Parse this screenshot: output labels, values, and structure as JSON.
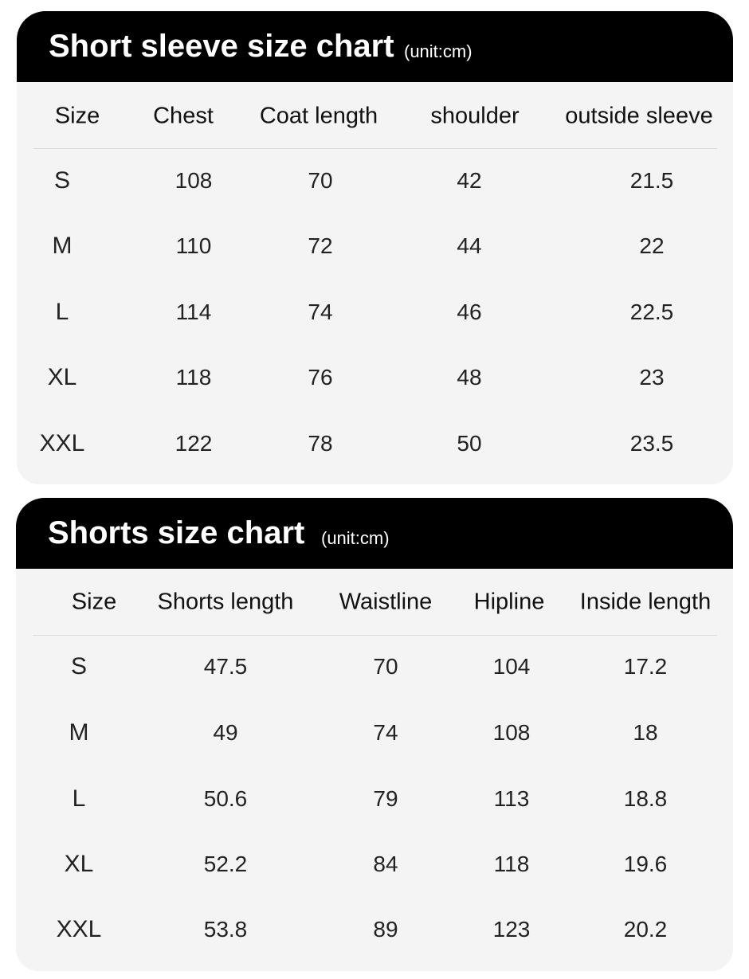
{
  "tables": [
    {
      "title": "Short sleeve size chart",
      "unit": "(unit:cm)",
      "headers": [
        "Size",
        "Chest",
        "Coat length",
        "shoulder",
        "outside sleeve"
      ],
      "rows": [
        [
          "S",
          "108",
          "70",
          "42",
          "21.5"
        ],
        [
          "M",
          "110",
          "72",
          "44",
          "22"
        ],
        [
          "L",
          "114",
          "74",
          "46",
          "22.5"
        ],
        [
          "XL",
          "118",
          "76",
          "48",
          "23"
        ],
        [
          "XXL",
          "122",
          "78",
          "50",
          "23.5"
        ]
      ]
    },
    {
      "title": "Shorts size chart",
      "unit": "(unit:cm)",
      "headers": [
        "Size",
        "Shorts length",
        "Waistline",
        "Hipline",
        "Inside length"
      ],
      "rows": [
        [
          "S",
          "47.5",
          "70",
          "104",
          "17.2"
        ],
        [
          "M",
          "49",
          "74",
          "108",
          "18"
        ],
        [
          "L",
          "50.6",
          "79",
          "113",
          "18.8"
        ],
        [
          "XL",
          "52.2",
          "84",
          "118",
          "19.6"
        ],
        [
          "XXL",
          "53.8",
          "89",
          "123",
          "20.2"
        ]
      ]
    }
  ],
  "colors": {
    "header_bg": "#000000",
    "card_bg": "#f4f4f4",
    "text": "#222222"
  }
}
